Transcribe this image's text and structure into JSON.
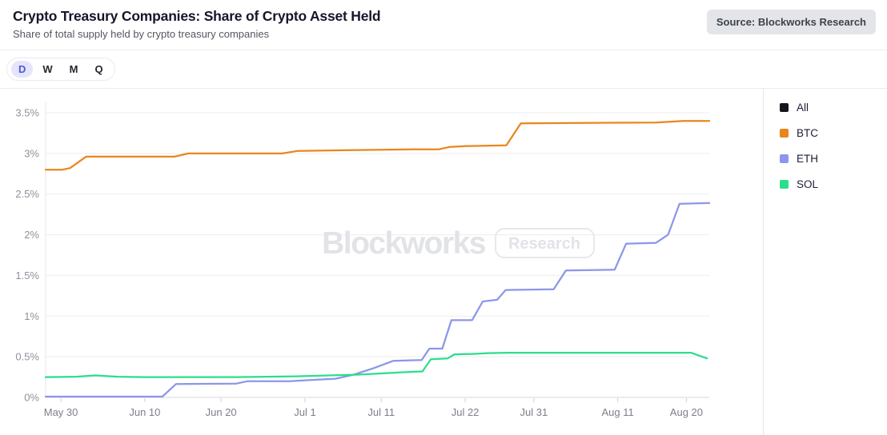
{
  "header": {
    "title": "Crypto Treasury Companies: Share of Crypto Asset Held",
    "subtitle": "Share of total supply held by crypto treasury companies",
    "source_badge": "Source: Blockworks Research"
  },
  "toolbar": {
    "intervals": [
      {
        "label": "D",
        "active": true
      },
      {
        "label": "W",
        "active": false
      },
      {
        "label": "M",
        "active": false
      },
      {
        "label": "Q",
        "active": false
      }
    ]
  },
  "watermark": {
    "brand": "Blockworks",
    "tag": "Research"
  },
  "legend": {
    "position": "right",
    "items": [
      {
        "label": "All",
        "color": "#15151c"
      },
      {
        "label": "BTC",
        "color": "#e8871d"
      },
      {
        "label": "ETH",
        "color": "#8c96ea"
      },
      {
        "label": "SOL",
        "color": "#2bde8c"
      }
    ]
  },
  "colors": {
    "grid": "#ededf1",
    "axis_baseline": "#d9dade",
    "axis_left": "#e7e7ec",
    "tick_mark": "#cfd0d6",
    "y_label": "#8e929b",
    "x_label": "#7b7f89",
    "watermark": "#e2e3e7",
    "watermark_box": "#e7e8ec"
  },
  "chart_data": {
    "type": "line",
    "title": "Crypto Treasury Companies: Share of Crypto Asset Held",
    "subtitle": "Share of total supply held by crypto treasury companies",
    "unit": "percent",
    "xlabel": "",
    "ylabel": "",
    "grid": "horizontal",
    "legend_position": "right",
    "x_unit": "days since May 28",
    "xlim": [
      0,
      87
    ],
    "ylim": [
      0,
      3.5
    ],
    "x_ticks": [
      {
        "d": 2,
        "label": "May 30"
      },
      {
        "d": 13,
        "label": "Jun 10"
      },
      {
        "d": 23,
        "label": "Jun 20"
      },
      {
        "d": 34,
        "label": "Jul 1"
      },
      {
        "d": 44,
        "label": "Jul 11"
      },
      {
        "d": 55,
        "label": "Jul 22"
      },
      {
        "d": 64,
        "label": "Jul 31"
      },
      {
        "d": 75,
        "label": "Aug 11"
      },
      {
        "d": 84,
        "label": "Aug 20"
      }
    ],
    "y_ticks": [
      {
        "v": 0,
        "label": "0%"
      },
      {
        "v": 0.5,
        "label": "0.5%"
      },
      {
        "v": 1,
        "label": "1%"
      },
      {
        "v": 1.5,
        "label": "1.5%"
      },
      {
        "v": 2,
        "label": "2%"
      },
      {
        "v": 2.5,
        "label": "2.5%"
      },
      {
        "v": 3,
        "label": "3%"
      },
      {
        "v": 3.5,
        "label": "3.5%"
      }
    ],
    "series": [
      {
        "name": "All",
        "color": "#15151c",
        "visible": false,
        "points": []
      },
      {
        "name": "BTC",
        "color": "#e8871d",
        "visible": true,
        "points": [
          [
            0,
            2.8
          ],
          [
            2.2,
            2.8
          ],
          [
            3.2,
            2.82
          ],
          [
            5.3,
            2.96
          ],
          [
            16.9,
            2.96
          ],
          [
            18.7,
            3.0
          ],
          [
            31,
            3.0
          ],
          [
            33,
            3.03
          ],
          [
            40,
            3.04
          ],
          [
            48,
            3.05
          ],
          [
            51.5,
            3.05
          ],
          [
            53,
            3.08
          ],
          [
            55,
            3.09
          ],
          [
            60.4,
            3.1
          ],
          [
            62.3,
            3.37
          ],
          [
            80,
            3.38
          ],
          [
            83.6,
            3.4
          ],
          [
            87,
            3.4
          ]
        ]
      },
      {
        "name": "ETH",
        "color": "#8c96ea",
        "visible": true,
        "points": [
          [
            0,
            0.01
          ],
          [
            15.3,
            0.01
          ],
          [
            17.1,
            0.165
          ],
          [
            25,
            0.17
          ],
          [
            26.5,
            0.2
          ],
          [
            32,
            0.2
          ],
          [
            34,
            0.21
          ],
          [
            38,
            0.23
          ],
          [
            40.4,
            0.28
          ],
          [
            43,
            0.36
          ],
          [
            45.6,
            0.45
          ],
          [
            49.3,
            0.46
          ],
          [
            50.3,
            0.6
          ],
          [
            52,
            0.6
          ],
          [
            53.2,
            0.95
          ],
          [
            55.9,
            0.95
          ],
          [
            57.3,
            1.18
          ],
          [
            59.2,
            1.2
          ],
          [
            60.3,
            1.32
          ],
          [
            66.6,
            1.33
          ],
          [
            68.2,
            1.56
          ],
          [
            74.6,
            1.57
          ],
          [
            76.1,
            1.89
          ],
          [
            80,
            1.9
          ],
          [
            81.6,
            2.0
          ],
          [
            83.1,
            2.38
          ],
          [
            87,
            2.39
          ]
        ]
      },
      {
        "name": "SOL",
        "color": "#2bde8c",
        "visible": true,
        "points": [
          [
            0,
            0.25
          ],
          [
            4,
            0.255
          ],
          [
            6.5,
            0.27
          ],
          [
            9.5,
            0.255
          ],
          [
            13,
            0.25
          ],
          [
            25,
            0.25
          ],
          [
            33,
            0.26
          ],
          [
            37,
            0.27
          ],
          [
            41,
            0.28
          ],
          [
            45,
            0.3
          ],
          [
            48,
            0.315
          ],
          [
            49.4,
            0.32
          ],
          [
            50.5,
            0.47
          ],
          [
            52.7,
            0.48
          ],
          [
            53.6,
            0.53
          ],
          [
            56,
            0.535
          ],
          [
            58,
            0.545
          ],
          [
            61,
            0.55
          ],
          [
            84.6,
            0.55
          ],
          [
            86.7,
            0.48
          ]
        ]
      }
    ]
  }
}
